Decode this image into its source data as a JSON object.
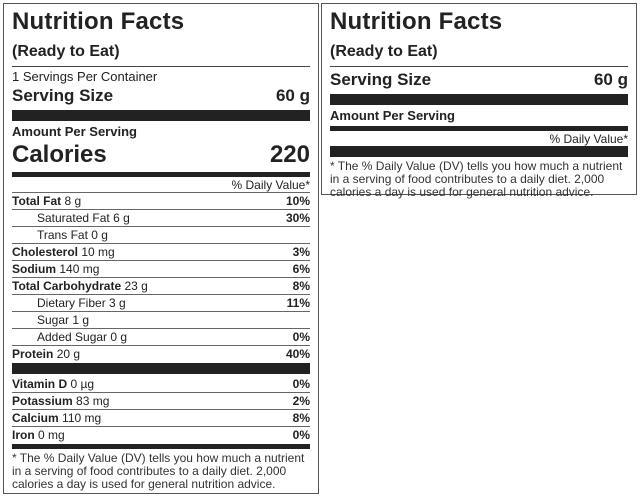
{
  "label1": {
    "title": "Nutrition Facts",
    "subtitle": "(Ready to Eat)",
    "servings_per_container": "1 Servings Per Container",
    "serving_size_label": "Serving Size",
    "serving_size_value": "60 g",
    "amount_per_serving": "Amount Per Serving",
    "calories_label": "Calories",
    "calories_value": "220",
    "daily_value_header": "% Daily Value*",
    "nutrients": [
      {
        "name": "Total Fat",
        "amount": "8 g",
        "dv": "10%"
      },
      {
        "name": "Saturated Fat",
        "amount": "6 g",
        "dv": "30%"
      },
      {
        "name": "Trans Fat",
        "amount": "0 g",
        "dv": ""
      },
      {
        "name": "Cholesterol",
        "amount": "10 mg",
        "dv": "3%"
      },
      {
        "name": "Sodium",
        "amount": "140 mg",
        "dv": "6%"
      },
      {
        "name": "Total Carbohydrate",
        "amount": "23 g",
        "dv": "8%"
      },
      {
        "name": "Dietary Fiber",
        "amount": "3 g",
        "dv": "11%"
      },
      {
        "name": "Sugar",
        "amount": "1 g",
        "dv": ""
      },
      {
        "name": "Added Sugar",
        "amount": "0 g",
        "dv": "0%"
      },
      {
        "name": "Protein",
        "amount": "20 g",
        "dv": "40%"
      }
    ],
    "vitamins": [
      {
        "name": "Vitamin D",
        "amount": "0 µg",
        "dv": "0%"
      },
      {
        "name": "Potassium",
        "amount": "83 mg",
        "dv": "2%"
      },
      {
        "name": "Calcium",
        "amount": "110 mg",
        "dv": "8%"
      },
      {
        "name": "Iron",
        "amount": "0 mg",
        "dv": "0%"
      }
    ],
    "footnote": "* The % Daily Value (DV) tells you how much a nutrient in a serving of food contributes to a daily diet. 2,000 calories a day is used for general nutrition advice."
  },
  "label2": {
    "title": "Nutrition Facts",
    "subtitle": "(Ready to Eat)",
    "serving_size_label": "Serving Size",
    "serving_size_value": "60 g",
    "amount_per_serving": "Amount Per Serving",
    "daily_value_header": "% Daily Value*",
    "footnote": "* The % Daily Value (DV) tells you how much a nutrient in a serving of food contributes to a daily diet. 2,000 calories a day is used for general nutrition advice."
  }
}
